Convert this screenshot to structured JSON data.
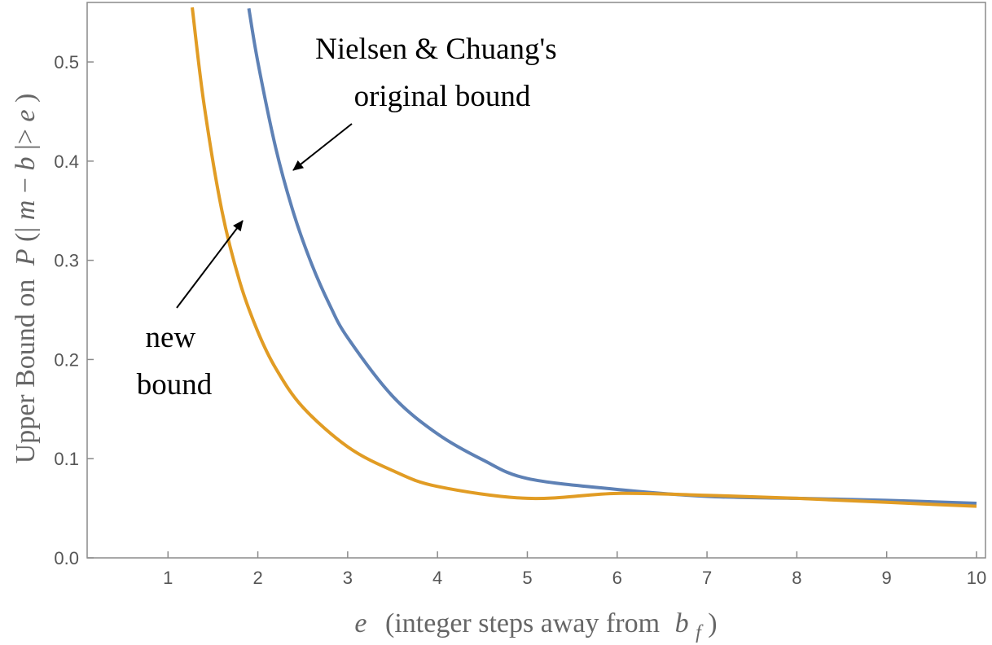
{
  "chart_data": {
    "type": "line",
    "xlim": [
      0.1,
      10.1
    ],
    "ylim": [
      0,
      0.56
    ],
    "xticks": [
      "1",
      "2",
      "3",
      "4",
      "5",
      "6",
      "7",
      "8",
      "9",
      "10"
    ],
    "yticks": [
      "0.0",
      "0.1",
      "0.2",
      "0.3",
      "0.4",
      "0.5"
    ],
    "xlabel": {
      "var": "e",
      "text": "(integer steps away from",
      "var2": "b",
      "sub": "f",
      "close": ")"
    },
    "ylabel": {
      "text": "Upper Bound on",
      "P": "P",
      "open": "(|",
      "m": "m",
      "minus": "−",
      "b": "b",
      "close1": "|>",
      "e": "e",
      "close2": ")"
    },
    "grid": false,
    "frame": true,
    "series": [
      {
        "color": "#5e81b5",
        "x": [
          1.9,
          2.0,
          2.2,
          2.4,
          2.6,
          2.8,
          3.0,
          3.5,
          4.0,
          4.5,
          5.0,
          6.0,
          7.0,
          8.0,
          9.0,
          10.0
        ],
        "y": [
          0.554,
          0.5,
          0.413,
          0.347,
          0.296,
          0.255,
          0.222,
          0.163,
          0.125,
          0.099,
          0.08,
          0.069,
          0.062,
          0.06,
          0.058,
          0.055
        ]
      },
      {
        "color": "#e19c24",
        "x": [
          1.27,
          1.4,
          1.6,
          1.8,
          2.0,
          2.2,
          2.5,
          3.0,
          3.5,
          4.0,
          5.0,
          6.0,
          7.0,
          8.0,
          9.0,
          10.0
        ],
        "y": [
          0.555,
          0.458,
          0.35,
          0.278,
          0.228,
          0.191,
          0.152,
          0.112,
          0.088,
          0.072,
          0.06,
          0.065,
          0.063,
          0.06,
          0.056,
          0.052
        ]
      }
    ],
    "annotations": [
      {
        "lines": [
          "Nielsen & Chuang's",
          "original bound"
        ],
        "points_to_series": 0
      },
      {
        "lines": [
          "new",
          "bound"
        ],
        "points_to_series": 1
      }
    ]
  }
}
